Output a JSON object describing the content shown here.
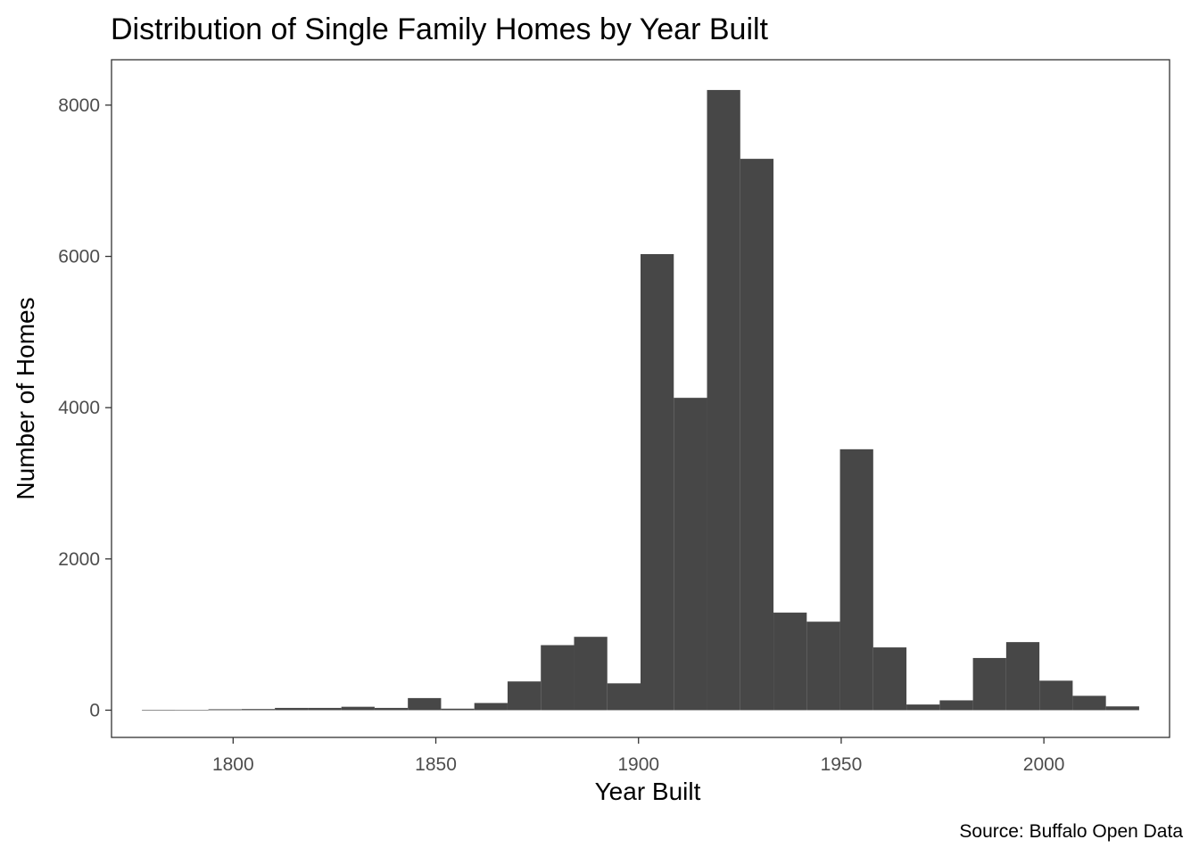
{
  "chart_data": {
    "type": "bar",
    "subtype": "histogram",
    "title": "Distribution of Single Family Homes by Year Built",
    "xlabel": "Year Built",
    "ylabel": "Number of Homes",
    "caption": "Source: Buffalo Open Data",
    "xlim": [
      1770,
      2031
    ],
    "ylim": [
      -360,
      8600
    ],
    "x_ticks": [
      1800,
      1850,
      1900,
      1950,
      2000
    ],
    "y_ticks": [
      0,
      2000,
      4000,
      6000,
      8000
    ],
    "grid": false,
    "bar_color": "#474747",
    "bins": [
      {
        "start": 1777.5,
        "end": 1785.7,
        "count": 5
      },
      {
        "start": 1785.7,
        "end": 1793.9,
        "count": 0
      },
      {
        "start": 1793.9,
        "end": 1802.1,
        "count": 12
      },
      {
        "start": 1802.1,
        "end": 1810.3,
        "count": 15
      },
      {
        "start": 1810.3,
        "end": 1818.5,
        "count": 30
      },
      {
        "start": 1818.5,
        "end": 1826.7,
        "count": 30
      },
      {
        "start": 1826.7,
        "end": 1834.9,
        "count": 45
      },
      {
        "start": 1834.9,
        "end": 1843.1,
        "count": 30
      },
      {
        "start": 1843.1,
        "end": 1851.3,
        "count": 160
      },
      {
        "start": 1851.3,
        "end": 1859.5,
        "count": 20
      },
      {
        "start": 1859.5,
        "end": 1867.7,
        "count": 95
      },
      {
        "start": 1867.7,
        "end": 1875.9,
        "count": 380
      },
      {
        "start": 1875.9,
        "end": 1884.1,
        "count": 860
      },
      {
        "start": 1884.1,
        "end": 1892.3,
        "count": 970
      },
      {
        "start": 1892.3,
        "end": 1900.5,
        "count": 355
      },
      {
        "start": 1900.5,
        "end": 1908.7,
        "count": 6030
      },
      {
        "start": 1908.7,
        "end": 1916.9,
        "count": 4130
      },
      {
        "start": 1916.9,
        "end": 1925.1,
        "count": 8200
      },
      {
        "start": 1925.1,
        "end": 1933.3,
        "count": 7290
      },
      {
        "start": 1933.3,
        "end": 1941.5,
        "count": 1290
      },
      {
        "start": 1941.5,
        "end": 1949.7,
        "count": 1170
      },
      {
        "start": 1949.7,
        "end": 1957.9,
        "count": 3450
      },
      {
        "start": 1957.9,
        "end": 1966.1,
        "count": 830
      },
      {
        "start": 1966.1,
        "end": 1974.3,
        "count": 75
      },
      {
        "start": 1974.3,
        "end": 1982.5,
        "count": 130
      },
      {
        "start": 1982.5,
        "end": 1990.7,
        "count": 690
      },
      {
        "start": 1990.7,
        "end": 1998.9,
        "count": 900
      },
      {
        "start": 1998.9,
        "end": 2007.1,
        "count": 390
      },
      {
        "start": 2007.1,
        "end": 2015.3,
        "count": 190
      },
      {
        "start": 2015.3,
        "end": 2023.5,
        "count": 50
      }
    ]
  }
}
